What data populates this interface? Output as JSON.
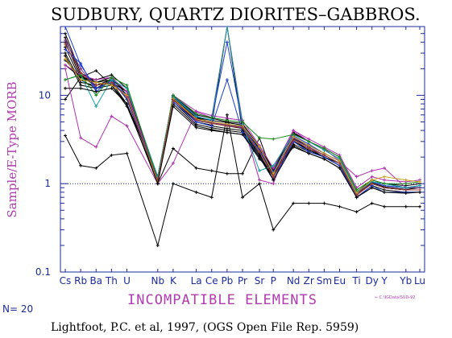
{
  "chart_data": {
    "type": "line",
    "title": "SUDBURY,  QUARTZ  DIORITES–GABBROS.",
    "ylabel": "Sample/E-Type MORB",
    "xlabel": "INCOMPATIBLE  ELEMENTS",
    "y_scale": "log",
    "ylim": [
      0.1,
      60
    ],
    "y_ticks": [
      {
        "value": 0.1,
        "label": "0.1"
      },
      {
        "value": 1,
        "label": "1"
      },
      {
        "value": 10,
        "label": "10"
      }
    ],
    "reference_line": 1,
    "categories": [
      "Cs",
      "Rb",
      "Ba",
      "Th",
      "U",
      "Nb",
      "K",
      "La",
      "Ce",
      "Pb",
      "Pr",
      "Sr",
      "P",
      "Nd",
      "Zr",
      "Sm",
      "Eu",
      "Ti",
      "Dy",
      "Y",
      "Yb",
      "Lu"
    ],
    "tick_labels": [
      {
        "label": "Cs",
        "pos": 0
      },
      {
        "label": "Rb",
        "pos": 1
      },
      {
        "label": "Ba",
        "pos": 2
      },
      {
        "label": "Th",
        "pos": 3
      },
      {
        "label": "U",
        "pos": 4
      },
      {
        "label": "Nb",
        "pos": 6
      },
      {
        "label": "K",
        "pos": 7
      },
      {
        "label": "La",
        "pos": 8.5
      },
      {
        "label": "Ce",
        "pos": 9.5
      },
      {
        "label": "Pb",
        "pos": 10.5
      },
      {
        "label": "Pr",
        "pos": 11.5
      },
      {
        "label": "Sr",
        "pos": 12.6
      },
      {
        "label": "P",
        "pos": 13.5
      },
      {
        "label": "Nd",
        "pos": 14.8
      },
      {
        "label": "Zr",
        "pos": 15.8
      },
      {
        "label": "Sm",
        "pos": 16.8
      },
      {
        "label": "Eu",
        "pos": 17.8
      },
      {
        "label": "Ti",
        "pos": 18.9
      },
      {
        "label": "Dy",
        "pos": 19.9
      },
      {
        "label": "Y",
        "pos": 20.7
      },
      {
        "label": "Yb",
        "pos": 22.1
      },
      {
        "label": "Lu",
        "pos": 23
      }
    ],
    "x_positions": [
      0,
      1,
      2,
      3,
      4,
      6,
      7,
      8.5,
      9.5,
      10.5,
      11.5,
      12.6,
      13.5,
      14.8,
      15.8,
      16.8,
      17.8,
      18.9,
      19.9,
      20.7,
      22.1,
      23
    ],
    "series": [
      {
        "color": "#000000",
        "values": [
          45,
          17,
          13,
          15,
          9,
          1.1,
          9,
          5,
          4.5,
          4.2,
          4,
          2.2,
          1.1,
          3,
          2.4,
          2,
          1.7,
          0.75,
          1,
          0.9,
          0.85,
          0.85
        ]
      },
      {
        "color": "#000000",
        "values": [
          40,
          16,
          13,
          14,
          8,
          1.2,
          8.5,
          4.7,
          4.3,
          4,
          3.8,
          2,
          1.2,
          2.8,
          2.3,
          2,
          1.6,
          0.7,
          0.95,
          0.85,
          0.8,
          0.8
        ]
      },
      {
        "color": "#000000",
        "values": [
          35,
          15,
          12,
          13,
          7.5,
          1.1,
          8,
          4.5,
          4.1,
          3.8,
          3.6,
          1.9,
          1.3,
          2.6,
          2.2,
          1.9,
          1.5,
          0.7,
          0.9,
          0.8,
          0.8,
          0.8
        ]
      },
      {
        "color": "#000000",
        "values": [
          50,
          18,
          14,
          16,
          10,
          1.2,
          9.5,
          5.5,
          5,
          4.6,
          4.4,
          2.5,
          1.2,
          3.3,
          2.7,
          2.2,
          1.8,
          0.8,
          1.05,
          0.95,
          0.9,
          0.9
        ]
      },
      {
        "color": "#000000",
        "values": [
          25,
          16,
          15,
          17,
          12,
          1.1,
          10,
          6,
          5.5,
          5,
          4.8,
          2.6,
          1.4,
          3.8,
          3,
          2.5,
          2,
          0.85,
          1.1,
          1,
          0.95,
          1
        ]
      },
      {
        "color": "#000000",
        "values": [
          30,
          14,
          13,
          14,
          11,
          1.2,
          9.5,
          5.6,
          5.2,
          4.9,
          4.6,
          2.5,
          1.5,
          3.7,
          3,
          2.4,
          1.9,
          0.8,
          1.1,
          1,
          0.9,
          0.95
        ]
      },
      {
        "color": "#000000",
        "values": [
          3.5,
          1.6,
          1.5,
          2.1,
          2.2,
          0.2,
          1,
          0.8,
          0.7,
          6,
          0.7,
          1,
          0.3,
          0.6,
          0.6,
          0.6,
          0.55,
          0.48,
          0.6,
          0.55,
          0.55,
          0.55
        ]
      },
      {
        "color": "#000000",
        "values": [
          9,
          16,
          19,
          13,
          8,
          1,
          2.5,
          1.5,
          1.4,
          1.3,
          1.3,
          3.3,
          1.2,
          3,
          2.5,
          2,
          1.6,
          0.75,
          1,
          0.9,
          0.85,
          0.85
        ]
      },
      {
        "color": "#000000",
        "values": [
          22,
          16,
          14,
          15,
          9,
          1.1,
          9,
          5,
          4.6,
          60,
          3.9,
          2.1,
          1.2,
          3,
          2.4,
          2,
          1.7,
          0.75,
          1,
          0.9,
          0.85,
          0.85
        ]
      },
      {
        "color": "#000000",
        "values": [
          28,
          13,
          12,
          15,
          11,
          1,
          9,
          5.2,
          4.8,
          4.5,
          4.2,
          2.3,
          1.3,
          3.2,
          2.6,
          2.1,
          1.7,
          0.78,
          1.02,
          0.92,
          0.86,
          0.9
        ]
      },
      {
        "color": "#b030b0",
        "values": [
          20,
          3.3,
          2.6,
          5.8,
          4.5,
          1,
          1.7,
          6.5,
          5.6,
          60,
          5,
          1.1,
          1,
          4,
          3,
          2.5,
          1.8,
          1.2,
          1.4,
          1.5,
          0.9,
          0.95
        ]
      },
      {
        "color": "#b030b0",
        "values": [
          22,
          17,
          15,
          16,
          11,
          1.1,
          10,
          6.6,
          5.9,
          5.5,
          5.2,
          2.7,
          1.5,
          4,
          3.2,
          2.6,
          2.1,
          0.9,
          1.2,
          1.1,
          1.05,
          1.1
        ]
      },
      {
        "color": "#7a2d8a",
        "values": [
          42,
          20,
          12,
          14,
          10,
          1.05,
          9.2,
          5.2,
          4.9,
          4.6,
          4.4,
          2.4,
          1.3,
          3.3,
          2.6,
          2.1,
          1.7,
          0.75,
          1.05,
          0.95,
          0.9,
          0.9
        ]
      },
      {
        "color": "#1a3fd0",
        "values": [
          60,
          22,
          12,
          14,
          10,
          1.1,
          8.5,
          5,
          4.5,
          15,
          3.8,
          2,
          1.1,
          3,
          2.3,
          2,
          1.6,
          0.7,
          0.95,
          0.8,
          0.8,
          0.8
        ]
      },
      {
        "color": "#1a3fd0",
        "values": [
          33,
          23,
          11,
          15,
          9,
          1.15,
          9.8,
          5.8,
          5.2,
          40,
          4.5,
          2.4,
          1.35,
          3.5,
          2.8,
          2.2,
          1.8,
          0.8,
          1.05,
          0.95,
          0.9,
          0.95
        ]
      },
      {
        "color": "#14a0a0",
        "values": [
          15,
          17,
          7.5,
          15,
          12,
          1.2,
          9.6,
          5.7,
          5.3,
          60,
          4.7,
          1.4,
          1.6,
          3.6,
          3,
          2.4,
          1.9,
          0.8,
          1.05,
          1,
          0.9,
          0.95
        ]
      },
      {
        "color": "#1a8a1a",
        "values": [
          15,
          17,
          10,
          16,
          13,
          1.1,
          10,
          6.2,
          5.6,
          5.2,
          5,
          3.3,
          3.2,
          3.6,
          3,
          2.5,
          2,
          0.85,
          1.1,
          1,
          1,
          1.05
        ]
      },
      {
        "color": "#c8a020",
        "values": [
          26,
          15,
          14,
          13,
          10,
          1.05,
          9.2,
          5.4,
          5,
          4.7,
          4.5,
          2.6,
          1.3,
          3.4,
          2.7,
          2.2,
          1.8,
          0.78,
          1.1,
          1.2,
          1.1,
          1.05
        ]
      },
      {
        "color": "#a04040",
        "values": [
          38,
          18,
          13,
          14,
          9.5,
          1.1,
          8.8,
          5.3,
          4.8,
          4.5,
          4.3,
          2.3,
          1.2,
          3.1,
          2.5,
          2.1,
          1.7,
          0.74,
          1,
          0.9,
          0.85,
          0.85
        ]
      },
      {
        "color": "#000000",
        "values": [
          12,
          12,
          11,
          12,
          8,
          1,
          7.5,
          4.3,
          4,
          3.8,
          3.6,
          2,
          1.1,
          2.7,
          2.2,
          1.9,
          1.5,
          0.7,
          0.9,
          0.8,
          0.78,
          0.8
        ]
      }
    ],
    "n_label": "N= 20",
    "citation": "Lightfoot, P.C. et al, 1997, (OGS Open File Rep. 5959)",
    "file_ref": "← C:\\IGData\\SUD-92",
    "grid": false,
    "legend": "none"
  }
}
